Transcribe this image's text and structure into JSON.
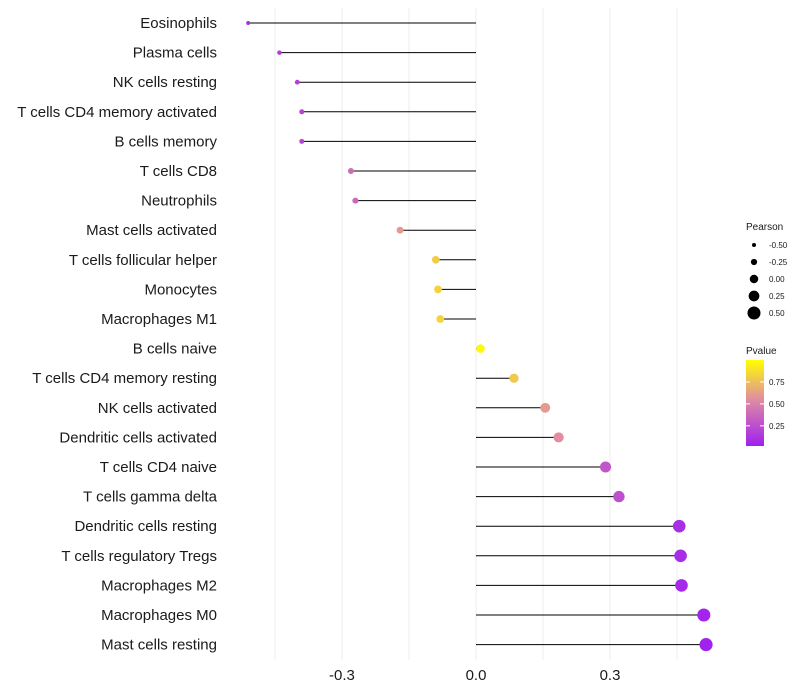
{
  "chart_data": {
    "type": "lollipop",
    "title": "",
    "xlabel": "",
    "ylabel": "",
    "xlim": [
      -0.52,
      0.55
    ],
    "x_ticks": [
      -0.3,
      0.0,
      0.3
    ],
    "x_tick_labels": [
      "-0.3",
      "0.0",
      "0.3"
    ],
    "grid": true,
    "categories": [
      "Eosinophils",
      "Plasma cells",
      "NK cells resting",
      "T cells CD4 memory activated",
      "B cells memory",
      "T cells CD8",
      "Neutrophils",
      "Mast cells activated",
      "T cells follicular helper",
      "Monocytes",
      "Macrophages M1",
      "B cells naive",
      "T cells CD4 memory resting",
      "NK cells activated",
      "Dendritic cells activated",
      "T cells CD4 naive",
      "T cells gamma delta",
      "Dendritic cells resting",
      "T cells regulatory  Tregs ",
      "Macrophages M2",
      "Macrophages M0",
      "Mast cells resting"
    ],
    "pearson": [
      -0.51,
      -0.44,
      -0.4,
      -0.39,
      -0.39,
      -0.28,
      -0.27,
      -0.17,
      -0.09,
      -0.085,
      -0.08,
      0.01,
      0.085,
      0.155,
      0.185,
      0.29,
      0.32,
      0.455,
      0.458,
      0.46,
      0.51,
      0.515
    ],
    "pvalue": [
      0.12,
      0.18,
      0.2,
      0.22,
      0.22,
      0.4,
      0.38,
      0.6,
      0.8,
      0.82,
      0.83,
      0.98,
      0.78,
      0.6,
      0.55,
      0.3,
      0.27,
      0.12,
      0.11,
      0.1,
      0.07,
      0.06
    ],
    "legend": {
      "size_title": "Pearson",
      "size_values": [
        -0.5,
        -0.25,
        0.0,
        0.25,
        0.5
      ],
      "size_labels": [
        "-0.50",
        "-0.25",
        "0.00",
        "0.25",
        "0.50"
      ],
      "color_title": "Pvalue",
      "color_ticks": [
        0.25,
        0.5,
        0.75
      ],
      "color_labels": [
        "0.25",
        "0.50",
        "0.75"
      ],
      "color_low": "#a020f0",
      "color_mid": "#e08ea0",
      "color_high": "#ffff00",
      "position": "right"
    },
    "colors": {
      "stem": "#000000",
      "grid": "#ececec"
    }
  }
}
